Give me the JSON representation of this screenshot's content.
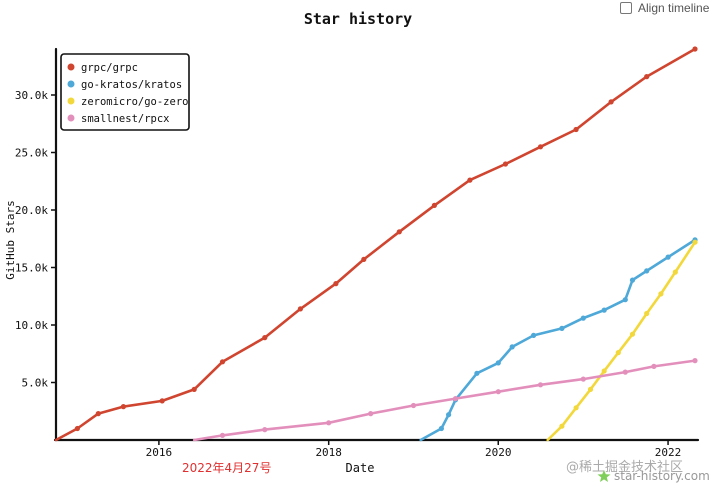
{
  "align_timeline": {
    "label": "Align timeline",
    "checked": false
  },
  "annotation": {
    "date_text": "2022年4月27号"
  },
  "watermark": {
    "juejin": "@稀土掘金技术社区",
    "site": "star-history.com",
    "logo_icon": "star-logo-icon"
  },
  "chart_data": {
    "type": "line",
    "title": "Star history",
    "xlabel": "Date",
    "ylabel": "GitHub Stars",
    "x_ticks": [
      "2016",
      "2018",
      "2020",
      "2022"
    ],
    "y_ticks": [
      "5.0k",
      "10.0k",
      "15.0k",
      "20.0k",
      "25.0k",
      "30.0k"
    ],
    "xlim": [
      "2014-10-15",
      "2022-04-27"
    ],
    "ylim": [
      0,
      34000
    ],
    "legend_position": "top-left",
    "grid": false,
    "series": [
      {
        "name": "grpc/grpc",
        "color": "#d0452f",
        "points": [
          [
            "2014-10-15",
            0
          ],
          [
            "2015-01-15",
            1000
          ],
          [
            "2015-04-15",
            2300
          ],
          [
            "2015-08-01",
            2900
          ],
          [
            "2016-01-15",
            3400
          ],
          [
            "2016-06-01",
            4400
          ],
          [
            "2016-10-01",
            6800
          ],
          [
            "2017-04-01",
            8900
          ],
          [
            "2017-09-01",
            11400
          ],
          [
            "2018-02-01",
            13600
          ],
          [
            "2018-06-01",
            15700
          ],
          [
            "2018-11-01",
            18100
          ],
          [
            "2019-04-01",
            20400
          ],
          [
            "2019-09-01",
            22600
          ],
          [
            "2020-02-01",
            24000
          ],
          [
            "2020-07-01",
            25500
          ],
          [
            "2020-12-01",
            27000
          ],
          [
            "2021-05-01",
            29400
          ],
          [
            "2021-10-01",
            31600
          ],
          [
            "2022-04-27",
            34000
          ]
        ]
      },
      {
        "name": "go-kratos/kratos",
        "color": "#4ea8d8",
        "points": [
          [
            "2019-02-01",
            0
          ],
          [
            "2019-05-01",
            1000
          ],
          [
            "2019-06-01",
            2200
          ],
          [
            "2019-07-01",
            3500
          ],
          [
            "2019-10-01",
            5800
          ],
          [
            "2020-01-01",
            6700
          ],
          [
            "2020-03-01",
            8100
          ],
          [
            "2020-06-01",
            9100
          ],
          [
            "2020-10-01",
            9700
          ],
          [
            "2021-01-01",
            10600
          ],
          [
            "2021-04-01",
            11300
          ],
          [
            "2021-07-01",
            12200
          ],
          [
            "2021-08-01",
            13900
          ],
          [
            "2021-10-01",
            14700
          ],
          [
            "2022-01-01",
            15900
          ],
          [
            "2022-04-27",
            17400
          ]
        ]
      },
      {
        "name": "zeromicro/go-zero",
        "color": "#f2d83b",
        "points": [
          [
            "2020-08-01",
            0
          ],
          [
            "2020-10-01",
            1200
          ],
          [
            "2020-12-01",
            2800
          ],
          [
            "2021-02-01",
            4400
          ],
          [
            "2021-04-01",
            6000
          ],
          [
            "2021-06-01",
            7600
          ],
          [
            "2021-08-01",
            9200
          ],
          [
            "2021-10-01",
            11000
          ],
          [
            "2021-12-01",
            12700
          ],
          [
            "2022-02-01",
            14600
          ],
          [
            "2022-04-27",
            17200
          ]
        ]
      },
      {
        "name": "smallnest/rpcx",
        "color": "#e38fbc",
        "points": [
          [
            "2016-06-01",
            0
          ],
          [
            "2016-10-01",
            400
          ],
          [
            "2017-04-01",
            900
          ],
          [
            "2018-01-01",
            1500
          ],
          [
            "2018-07-01",
            2300
          ],
          [
            "2019-01-01",
            3000
          ],
          [
            "2019-07-01",
            3600
          ],
          [
            "2020-01-01",
            4200
          ],
          [
            "2020-07-01",
            4800
          ],
          [
            "2021-01-01",
            5300
          ],
          [
            "2021-07-01",
            5900
          ],
          [
            "2021-11-01",
            6400
          ],
          [
            "2022-04-27",
            6900
          ]
        ]
      }
    ]
  }
}
